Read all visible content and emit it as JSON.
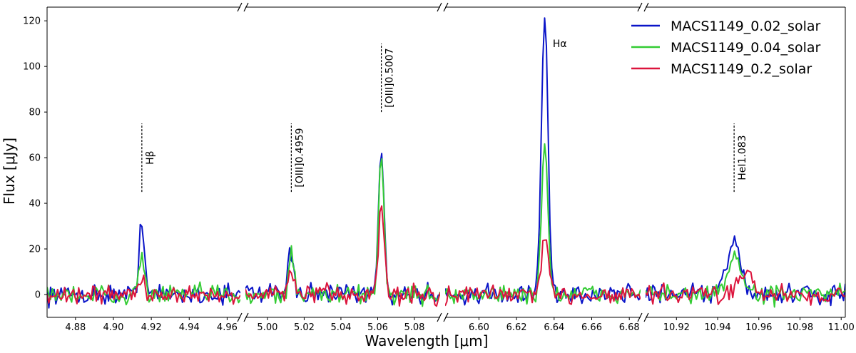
{
  "chart_data": {
    "type": "line",
    "xlabel": "Wavelength [μm]",
    "ylabel": "Flux [μJy]",
    "ylim": [
      -10,
      126
    ],
    "yticks": [
      0,
      20,
      40,
      60,
      80,
      100,
      120
    ],
    "legend_position": "top-right",
    "panels": [
      {
        "xlim": [
          4.865,
          4.967
        ],
        "xticks": [
          4.88,
          4.9,
          4.92,
          4.94,
          4.96
        ],
        "tick_labels": [
          "4.88",
          "4.90",
          "4.92",
          "4.94",
          "4.96"
        ]
      },
      {
        "xlim": [
          4.988,
          5.094
        ],
        "xticks": [
          5.0,
          5.02,
          5.04,
          5.06,
          5.08
        ],
        "tick_labels": [
          "5.00",
          "5.02",
          "5.04",
          "5.06",
          "5.08"
        ]
      },
      {
        "xlim": [
          6.582,
          6.686
        ],
        "xticks": [
          6.6,
          6.62,
          6.64,
          6.66,
          6.68
        ],
        "tick_labels": [
          "6.60",
          "6.62",
          "6.64",
          "6.66",
          "6.68"
        ]
      },
      {
        "xlim": [
          10.905,
          11.002
        ],
        "xticks": [
          10.92,
          10.94,
          10.96,
          10.98,
          11.0
        ],
        "tick_labels": [
          "10.92",
          "10.94",
          "10.96",
          "10.98",
          "11.00"
        ]
      }
    ],
    "series": [
      {
        "name": "MACS1149_0.02_solar",
        "color": "#0a14c8"
      },
      {
        "name": "MACS1149_0.04_solar",
        "color": "#33cc33"
      },
      {
        "name": "MACS1149_0.2_solar",
        "color": "#dc143c"
      }
    ],
    "peaks": [
      {
        "panel": 0,
        "center": 4.915,
        "width": 0.0014,
        "amps": [
          34,
          17,
          8.5
        ]
      },
      {
        "panel": 1,
        "center": 5.013,
        "width": 0.0015,
        "amps": [
          18.5,
          17,
          10.5
        ]
      },
      {
        "panel": 1,
        "center": 5.062,
        "width": 0.0015,
        "amps": [
          63,
          60,
          40
        ]
      },
      {
        "panel": 2,
        "center": 6.635,
        "width": 0.0017,
        "amps": [
          122,
          65,
          24
        ]
      },
      {
        "panel": 3,
        "center": 10.948,
        "width": 0.0035,
        "amps": [
          22,
          16,
          0
        ]
      },
      {
        "panel": 3,
        "center": 10.953,
        "width": 0.0035,
        "amps": [
          0,
          0,
          11
        ]
      }
    ],
    "annotations": [
      {
        "panel": 0,
        "x": 4.915,
        "y0": 45,
        "y1": 75,
        "label": "Hβ"
      },
      {
        "panel": 1,
        "x": 5.013,
        "y0": 45,
        "y1": 75,
        "label": "[OIII]0.4959"
      },
      {
        "panel": 1,
        "x": 5.062,
        "y0": 80,
        "y1": 110,
        "label": "[OIII]0.5007"
      },
      {
        "panel": 3,
        "x": 10.948,
        "y0": 45,
        "y1": 75,
        "label": "HeI1.083"
      }
    ],
    "free_annotations": [
      {
        "panel": 2,
        "x": 6.637,
        "y": 110,
        "label": "Hα"
      }
    ]
  }
}
